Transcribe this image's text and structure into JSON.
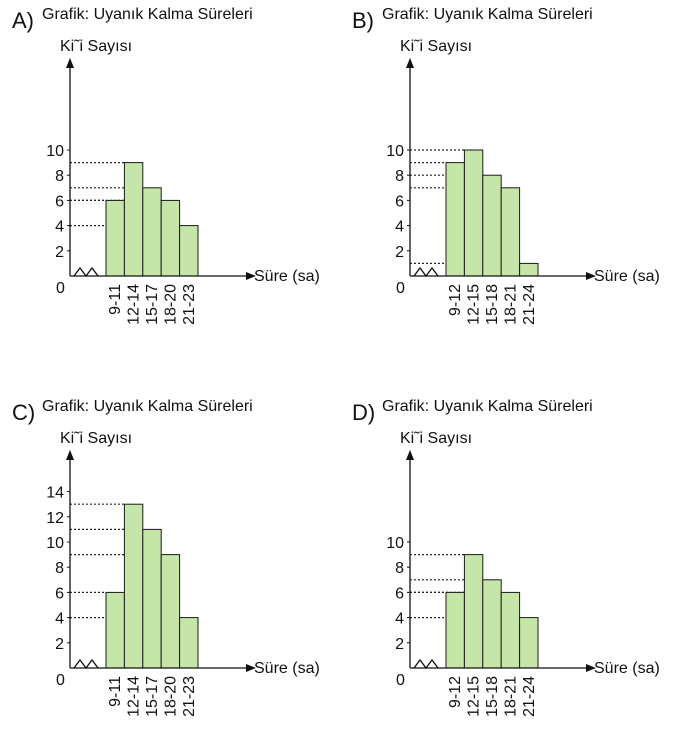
{
  "chart_data": [
    {
      "type": "bar",
      "option": "A)",
      "title": "Grafik: Uyanık Kalma Süreleri",
      "ylabel": "Ki˜i Sayısı",
      "xlabel": "Süre (sa)",
      "origin_label": "0",
      "categories": [
        "9-11",
        "12-14",
        "15-17",
        "18-20",
        "21-23"
      ],
      "values": [
        6,
        9,
        7,
        6,
        4
      ],
      "yticks": [
        2,
        4,
        6,
        8,
        10
      ],
      "ylim": [
        0,
        10
      ],
      "grid": false,
      "bar_color": "#c5e6a8"
    },
    {
      "type": "bar",
      "option": "B)",
      "title": "Grafik: Uyanık Kalma Süreleri",
      "ylabel": "Ki˜i Sayısı",
      "xlabel": "Süre (sa)",
      "origin_label": "0",
      "categories": [
        "9-12",
        "12-15",
        "15-18",
        "18-21",
        "21-24"
      ],
      "values": [
        9,
        10,
        8,
        7,
        1
      ],
      "yticks": [
        2,
        4,
        6,
        8,
        10
      ],
      "ylim": [
        0,
        10
      ],
      "grid": false,
      "bar_color": "#c5e6a8"
    },
    {
      "type": "bar",
      "option": "C)",
      "title": "Grafik: Uyanık Kalma Süreleri",
      "ylabel": "Ki˜i Sayısı",
      "xlabel": "Süre (sa)",
      "origin_label": "0",
      "categories": [
        "9-11",
        "12-14",
        "15-17",
        "18-20",
        "21-23"
      ],
      "values": [
        6,
        13,
        11,
        9,
        4
      ],
      "yticks": [
        2,
        4,
        6,
        8,
        10,
        12,
        14
      ],
      "ylim": [
        0,
        14
      ],
      "grid": false,
      "bar_color": "#c5e6a8"
    },
    {
      "type": "bar",
      "option": "D)",
      "title": "Grafik: Uyanık Kalma Süreleri",
      "ylabel": "Ki˜i Sayısı",
      "xlabel": "Süre (sa)",
      "origin_label": "0",
      "categories": [
        "9-12",
        "12-15",
        "15-18",
        "18-21",
        "21-24"
      ],
      "values": [
        6,
        9,
        7,
        6,
        4
      ],
      "yticks": [
        2,
        4,
        6,
        8,
        10
      ],
      "ylim": [
        0,
        10
      ],
      "grid": false,
      "bar_color": "#c5e6a8"
    }
  ]
}
